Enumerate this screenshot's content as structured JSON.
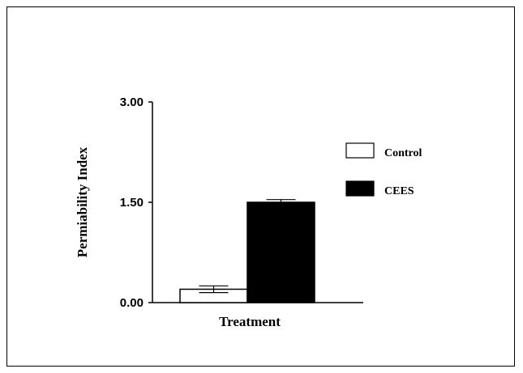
{
  "chart_data": {
    "type": "bar",
    "title": "",
    "xlabel": "Treatment",
    "ylabel": "Permiability Index",
    "ylim": [
      0,
      3
    ],
    "y_ticks": [
      "0.00",
      "1.50",
      "3.00"
    ],
    "categories": [
      "Treatment"
    ],
    "series": [
      {
        "name": "Control",
        "values": [
          0.2
        ],
        "error": [
          0.05
        ],
        "color": "#ffffff"
      },
      {
        "name": "CEES",
        "values": [
          1.5
        ],
        "error": [
          0.04
        ],
        "color": "#000000"
      }
    ],
    "legend_position": "right",
    "grid": false
  }
}
